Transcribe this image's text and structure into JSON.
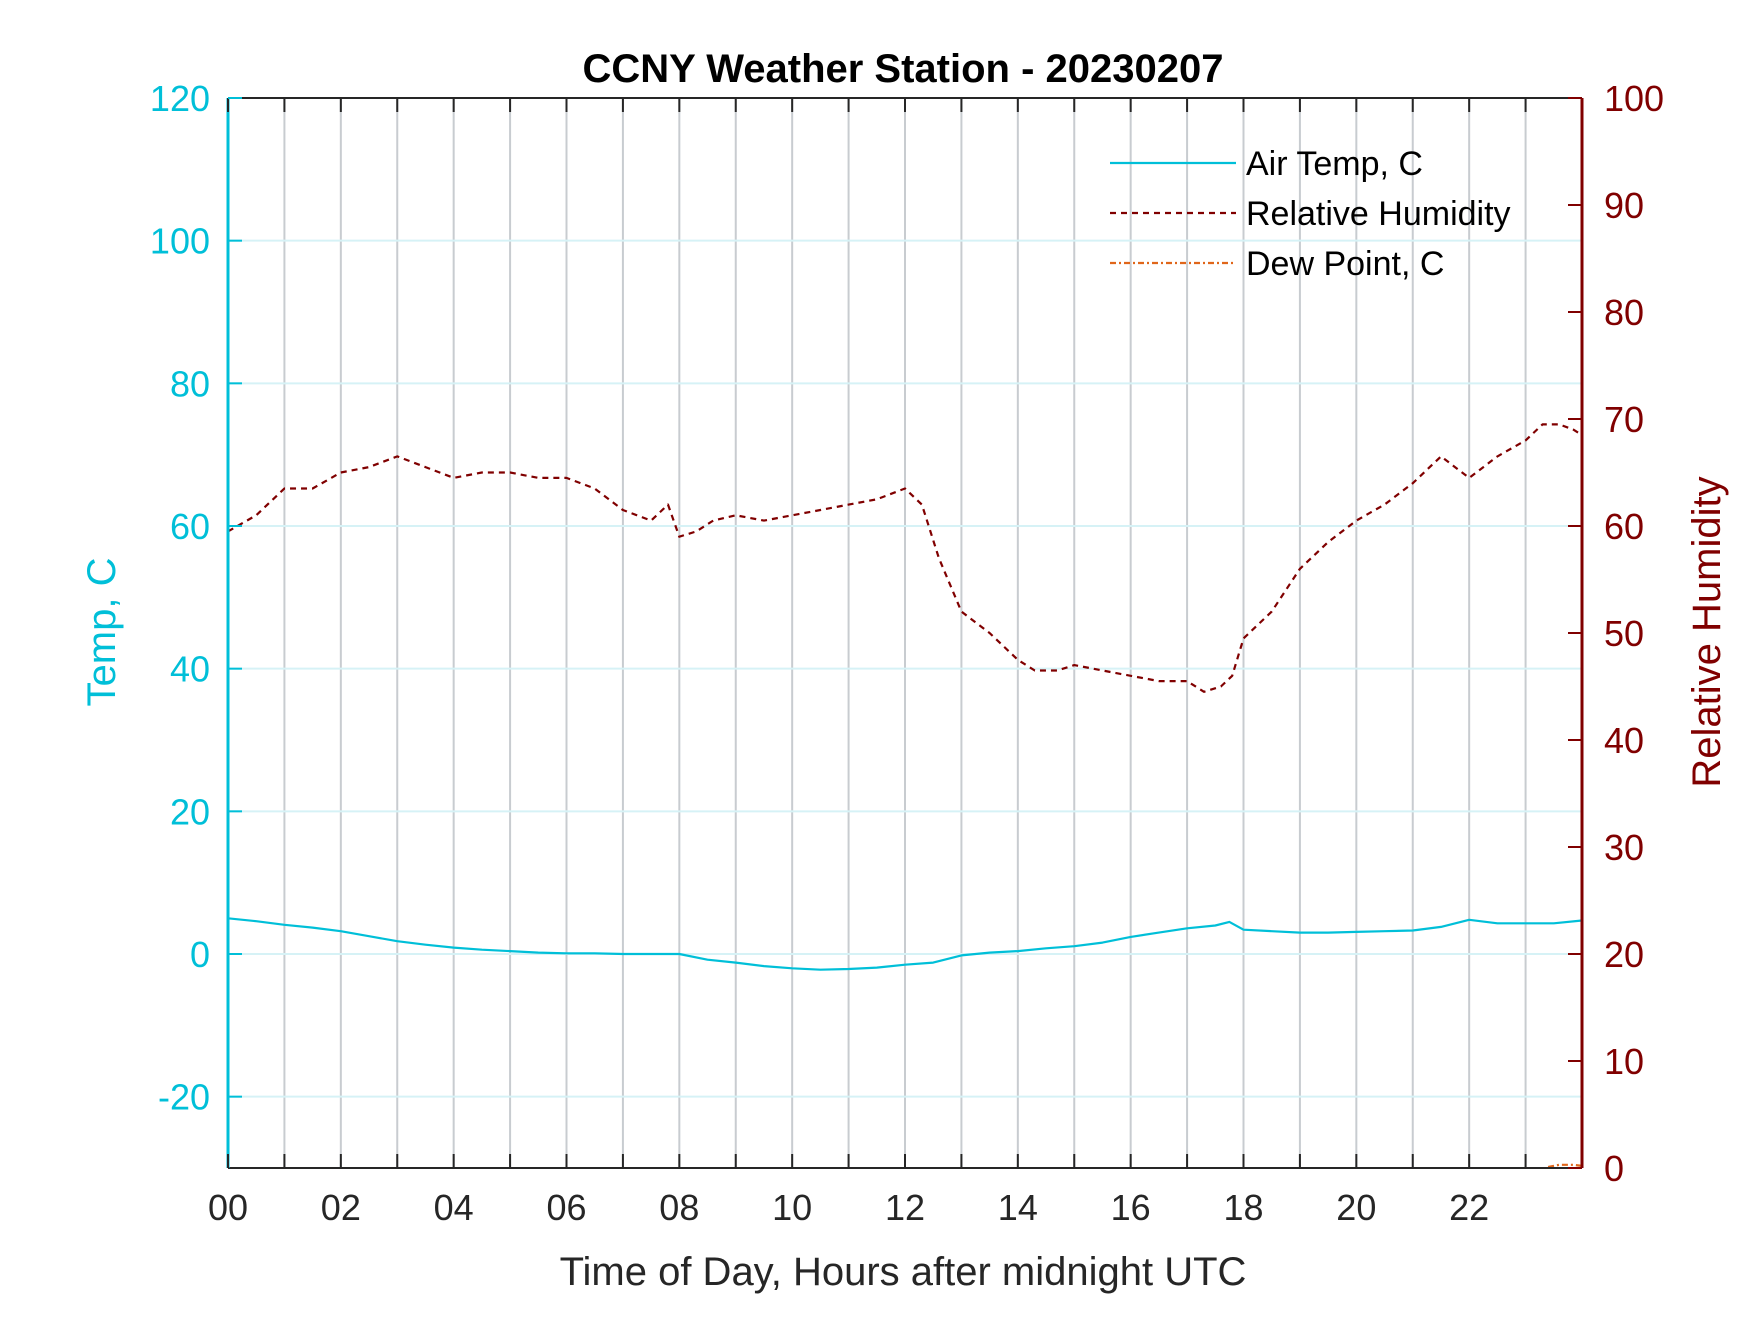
{
  "chart_data": {
    "type": "line",
    "title": "CCNY Weather Station - 20230207",
    "xlabel": "Time of Day, Hours after midnight UTC",
    "ylabel_left": "Temp, C",
    "ylabel_right": "Relative Humidity",
    "xlim": [
      0,
      24
    ],
    "ylim_left": [
      -30,
      120
    ],
    "ylim_right": [
      0,
      100
    ],
    "x_ticks": [
      0,
      2,
      4,
      6,
      8,
      10,
      12,
      14,
      16,
      18,
      20,
      22
    ],
    "x_tick_labels": [
      "00",
      "02",
      "04",
      "06",
      "08",
      "10",
      "12",
      "14",
      "16",
      "18",
      "20",
      "22"
    ],
    "y_left_ticks": [
      -20,
      0,
      20,
      40,
      60,
      80,
      100,
      120
    ],
    "y_right_ticks": [
      0,
      10,
      20,
      30,
      40,
      50,
      60,
      70,
      80,
      90,
      100
    ],
    "grid": true,
    "legend_position": "top-right",
    "colors": {
      "air_temp": "#00bfd8",
      "relative_humidity": "#800000",
      "dew_point": "#e0661a",
      "grid_vertical": "#c8ccd0",
      "grid_horizontal": "#d6f2f6"
    },
    "series": [
      {
        "name": "Air Temp, C",
        "axis": "left",
        "style": "solid",
        "x": [
          0,
          0.5,
          1,
          1.5,
          2,
          2.5,
          3,
          3.5,
          4,
          4.5,
          5,
          5.5,
          6,
          6.5,
          7,
          7.5,
          8,
          8.5,
          9,
          9.5,
          10,
          10.5,
          11,
          11.5,
          12,
          12.5,
          13,
          13.5,
          14,
          14.5,
          15,
          15.5,
          16,
          16.5,
          17,
          17.5,
          17.75,
          18,
          18.5,
          19,
          19.5,
          20,
          20.5,
          21,
          21.5,
          22,
          22.5,
          23,
          23.5,
          24
        ],
        "y": [
          5,
          4.6,
          4.1,
          3.7,
          3.2,
          2.5,
          1.8,
          1.3,
          0.9,
          0.6,
          0.4,
          0.2,
          0.1,
          0.1,
          0.0,
          0.0,
          0.0,
          -0.8,
          -1.2,
          -1.7,
          -2.0,
          -2.2,
          -2.1,
          -1.9,
          -1.5,
          -1.2,
          -0.2,
          0.2,
          0.4,
          0.8,
          1.1,
          1.6,
          2.4,
          3.0,
          3.6,
          4.0,
          4.5,
          3.4,
          3.2,
          3.0,
          3.0,
          3.1,
          3.2,
          3.3,
          3.8,
          4.8,
          4.3,
          4.3,
          4.3,
          4.7
        ]
      },
      {
        "name": "Relative Humidity",
        "axis": "right",
        "style": "dashed",
        "x": [
          0,
          0.5,
          1,
          1.5,
          2,
          2.5,
          3,
          3.5,
          4,
          4.5,
          5,
          5.5,
          6,
          6.5,
          7,
          7.5,
          7.8,
          8,
          8.3,
          8.6,
          9,
          9.5,
          10,
          10.5,
          11,
          11.5,
          12,
          12.3,
          12.6,
          13,
          13.5,
          14,
          14.3,
          14.7,
          15,
          15.5,
          16,
          16.5,
          17,
          17.3,
          17.6,
          17.8,
          18,
          18.5,
          19,
          19.5,
          20,
          20.5,
          21,
          21.5,
          22,
          22.5,
          23,
          23.3,
          23.6,
          23.85,
          24
        ],
        "y": [
          59.5,
          61,
          63.5,
          63.5,
          65,
          65.5,
          66.5,
          65.5,
          64.5,
          65,
          65,
          64.5,
          64.5,
          63.5,
          61.5,
          60.5,
          62,
          59,
          59.5,
          60.5,
          61,
          60.5,
          61,
          61.5,
          62,
          62.5,
          63.5,
          62,
          57,
          52,
          50,
          47.5,
          46.5,
          46.5,
          47,
          46.5,
          46,
          45.5,
          45.5,
          44.5,
          45,
          46,
          49.5,
          52,
          56,
          58.5,
          60.5,
          62,
          64,
          66.5,
          64.5,
          66.5,
          68,
          69.5,
          69.5,
          69,
          68.5
        ]
      },
      {
        "name": "Dew Point, C",
        "axis": "right",
        "style": "dashdot",
        "x": [
          23.4,
          23.6,
          23.85,
          24
        ],
        "y": [
          0.1,
          0.3,
          0.3,
          0.2
        ]
      }
    ]
  }
}
